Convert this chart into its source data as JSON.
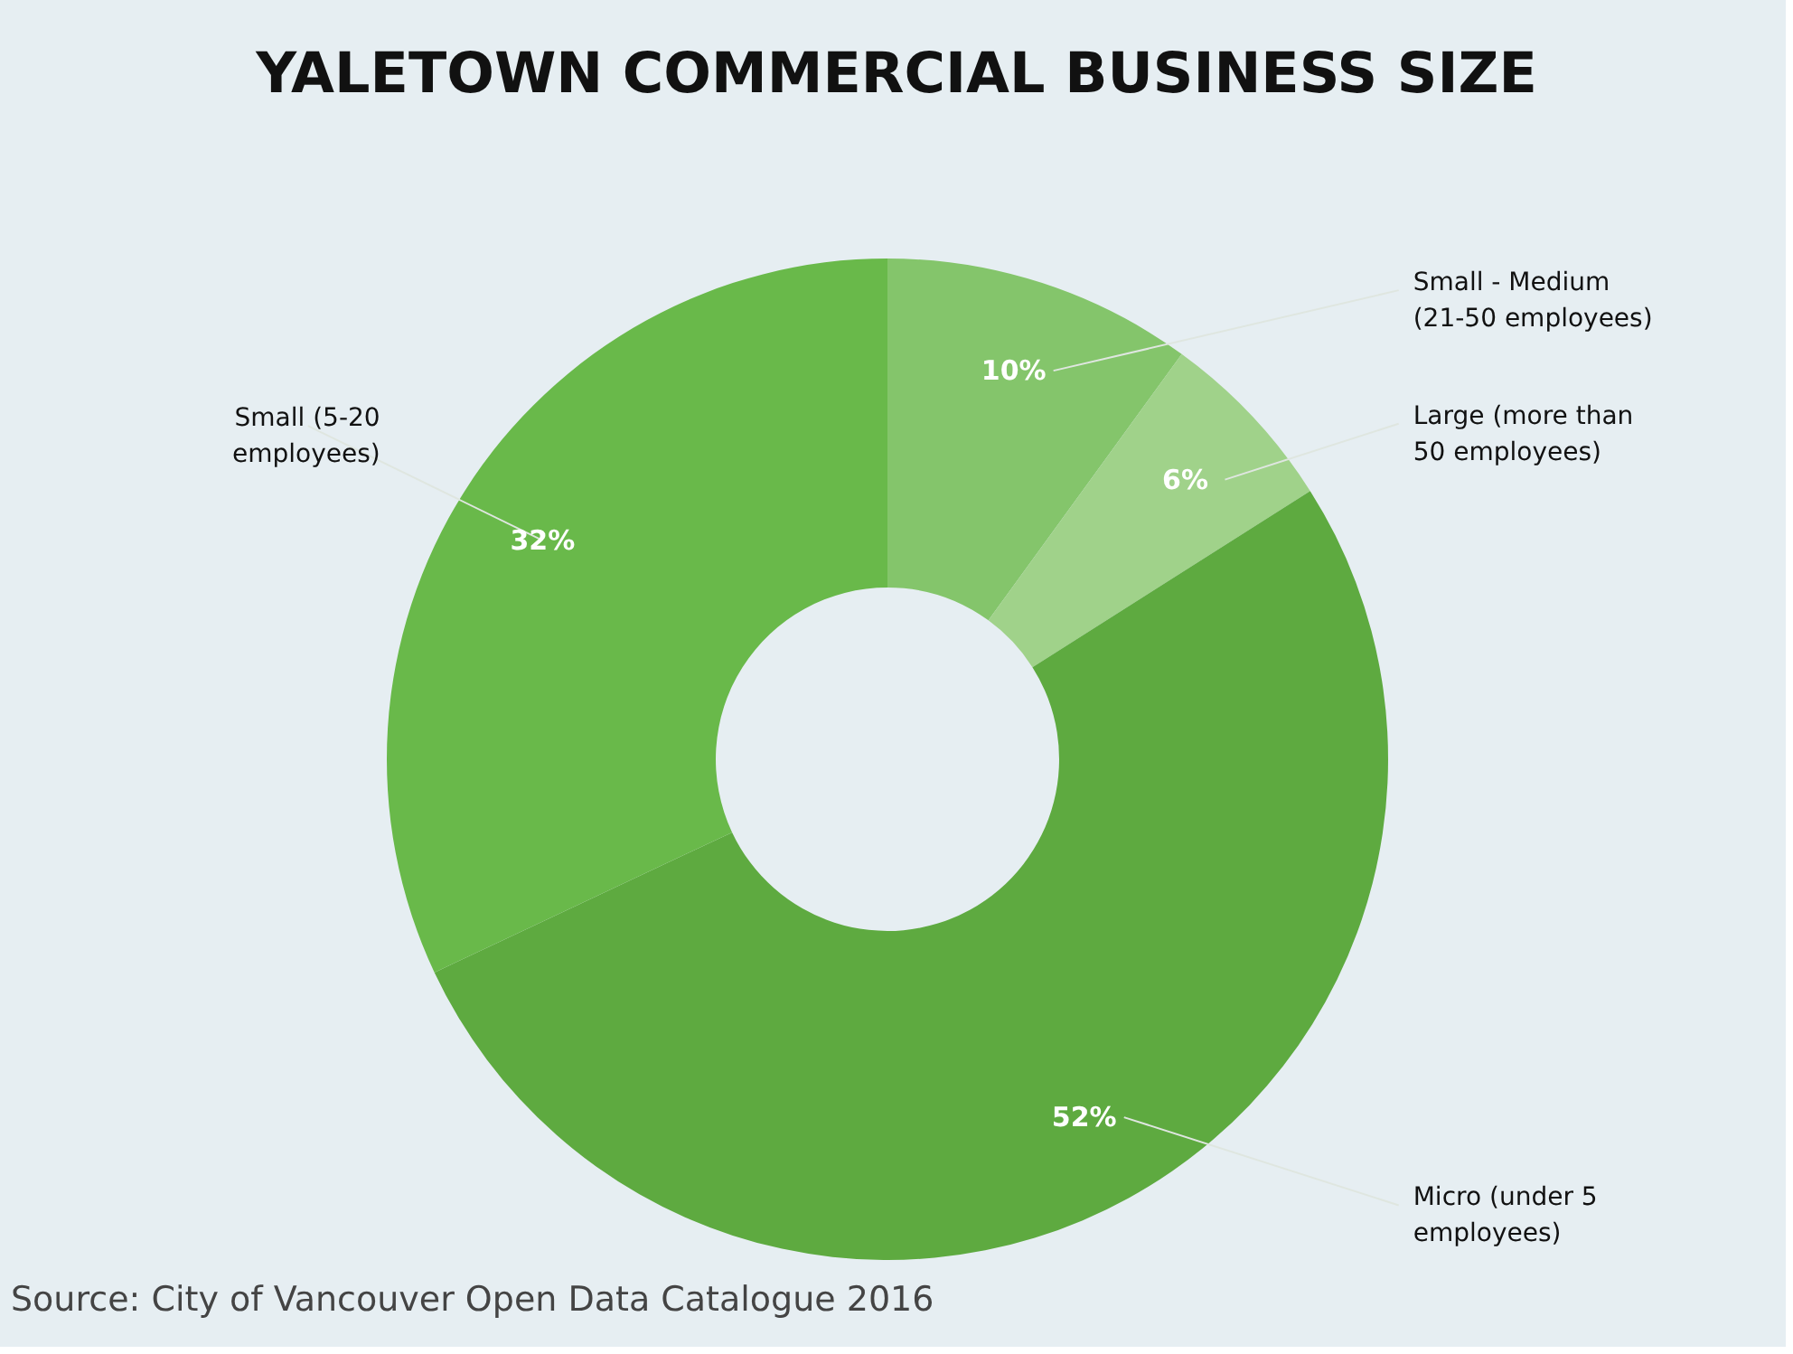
{
  "chart_data": {
    "type": "donut",
    "title": "YALETOWN COMMERCIAL BUSINESS SIZE",
    "categories": [
      "Small - Medium (21-50 employees)",
      "Large (more than 50 employees)",
      "Micro (under 5 employees)",
      "Small (5-20 employees)"
    ],
    "values": [
      10,
      6,
      52,
      32
    ],
    "value_labels": [
      "10%",
      "6%",
      "52%",
      "32%"
    ],
    "colors": [
      "#84c56b",
      "#a0d28a",
      "#5eaa40",
      "#69b94a"
    ],
    "annotations": [
      "Source: City of Vancouver Open Data Catalogue 2016"
    ]
  }
}
